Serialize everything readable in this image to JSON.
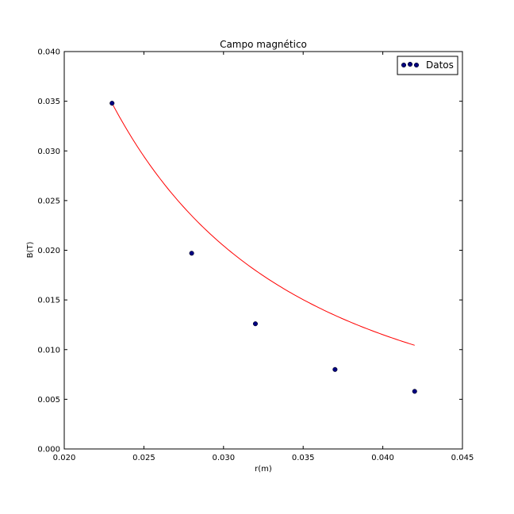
{
  "chart_data": {
    "type": "scatter",
    "title": "Campo magnético",
    "xlabel": "r(m)",
    "ylabel": "B(T)",
    "xlim": [
      0.02,
      0.045
    ],
    "ylim": [
      0.0,
      0.04
    ],
    "xticks": [
      "0.020",
      "0.025",
      "0.030",
      "0.035",
      "0.040",
      "0.045"
    ],
    "yticks": [
      "0.000",
      "0.005",
      "0.010",
      "0.015",
      "0.020",
      "0.025",
      "0.030",
      "0.035",
      "0.040"
    ],
    "grid": false,
    "legend": {
      "position": "top-right",
      "entries": [
        "Datos"
      ]
    },
    "series": [
      {
        "name": "Datos",
        "kind": "scatter",
        "color": "#000080",
        "x": [
          0.023,
          0.028,
          0.032,
          0.037,
          0.042
        ],
        "y": [
          0.0348,
          0.0197,
          0.0126,
          0.008,
          0.0058
        ]
      },
      {
        "kind": "line",
        "color": "#ff0000",
        "function": "power",
        "coefficient": 0.0348,
        "reference_x": 0.023,
        "exponent": -2.0,
        "x_range": [
          0.023,
          0.042
        ]
      }
    ]
  }
}
